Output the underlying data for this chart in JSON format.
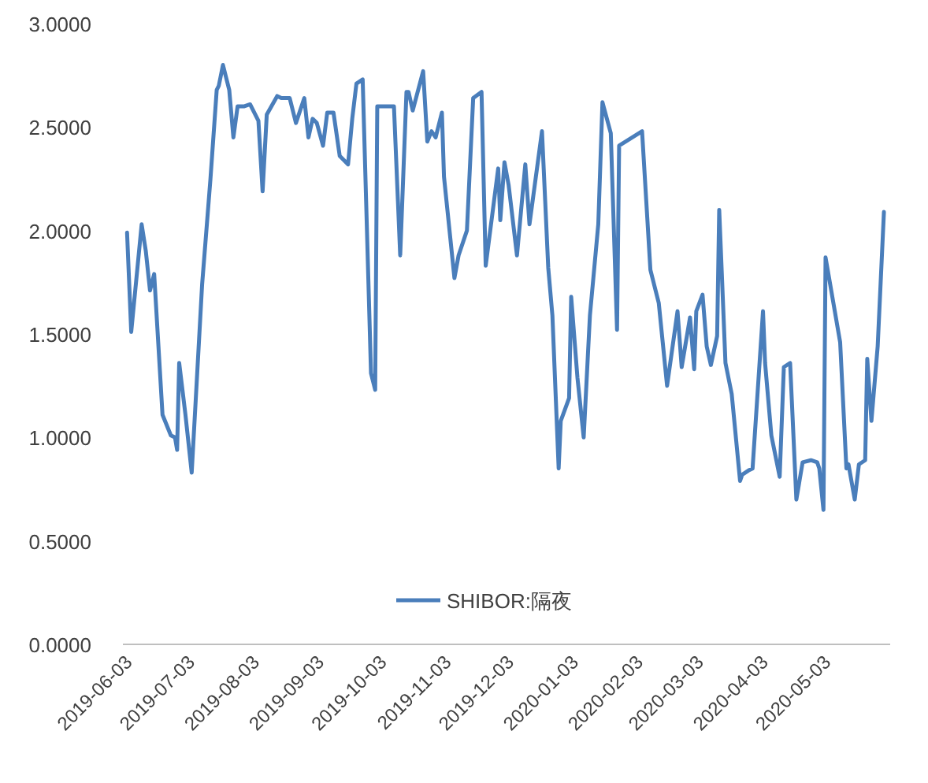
{
  "chart_data": {
    "type": "line",
    "x": [
      "2019-06-03",
      "2019-06-05",
      "2019-06-10",
      "2019-06-12",
      "2019-06-14",
      "2019-06-16",
      "2019-06-20",
      "2019-06-24",
      "2019-06-26",
      "2019-06-27",
      "2019-06-28",
      "2019-07-01",
      "2019-07-04",
      "2019-07-09",
      "2019-07-13",
      "2019-07-16",
      "2019-07-17",
      "2019-07-19",
      "2019-07-22",
      "2019-07-24",
      "2019-07-26",
      "2019-07-29",
      "2019-08-01",
      "2019-08-05",
      "2019-08-07",
      "2019-08-09",
      "2019-08-14",
      "2019-08-16",
      "2019-08-20",
      "2019-08-23",
      "2019-08-27",
      "2019-08-29",
      "2019-08-31",
      "2019-09-02",
      "2019-09-05",
      "2019-09-07",
      "2019-09-10",
      "2019-09-13",
      "2019-09-17",
      "2019-09-19",
      "2019-09-21",
      "2019-09-24",
      "2019-09-28",
      "2019-09-30",
      "2019-10-01",
      "2019-10-09",
      "2019-10-12",
      "2019-10-15",
      "2019-10-16",
      "2019-10-18",
      "2019-10-23",
      "2019-10-25",
      "2019-10-27",
      "2019-10-29",
      "2019-11-01",
      "2019-11-02",
      "2019-11-07",
      "2019-11-09",
      "2019-11-13",
      "2019-11-16",
      "2019-11-20",
      "2019-11-22",
      "2019-11-28",
      "2019-11-29",
      "2019-12-01",
      "2019-12-03",
      "2019-12-07",
      "2019-12-11",
      "2019-12-13",
      "2019-12-19",
      "2019-12-22",
      "2019-12-24",
      "2019-12-27",
      "2019-12-28",
      "2020-01-01",
      "2020-01-02",
      "2020-01-05",
      "2020-01-08",
      "2020-01-11",
      "2020-01-15",
      "2020-01-17",
      "2020-01-21",
      "2020-01-24",
      "2020-01-25",
      "2020-02-05",
      "2020-02-09",
      "2020-02-13",
      "2020-02-17",
      "2020-02-22",
      "2020-02-24",
      "2020-02-28",
      "2020-03-01",
      "2020-03-02",
      "2020-03-05",
      "2020-03-07",
      "2020-03-09",
      "2020-03-12",
      "2020-03-13",
      "2020-03-16",
      "2020-03-19",
      "2020-03-23",
      "2020-03-24",
      "2020-03-27",
      "2020-03-29",
      "2020-04-03",
      "2020-04-04",
      "2020-04-07",
      "2020-04-11",
      "2020-04-13",
      "2020-04-16",
      "2020-04-19",
      "2020-04-22",
      "2020-04-26",
      "2020-04-29",
      "2020-04-30",
      "2020-05-02",
      "2020-05-03",
      "2020-05-10",
      "2020-05-13",
      "2020-05-14",
      "2020-05-17",
      "2020-05-19",
      "2020-05-22",
      "2020-05-23",
      "2020-05-25",
      "2020-05-28",
      "2020-05-31"
    ],
    "series": [
      {
        "name": "SHIBOR:隔夜",
        "color": "#4a7ebb",
        "values": [
          1.99,
          1.51,
          2.03,
          1.9,
          1.71,
          1.79,
          1.11,
          1.01,
          1.0,
          0.94,
          1.36,
          1.11,
          0.83,
          1.74,
          2.25,
          2.68,
          2.7,
          2.8,
          2.68,
          2.45,
          2.6,
          2.6,
          2.61,
          2.53,
          2.19,
          2.56,
          2.65,
          2.64,
          2.64,
          2.52,
          2.64,
          2.45,
          2.54,
          2.52,
          2.41,
          2.57,
          2.57,
          2.36,
          2.32,
          2.54,
          2.71,
          2.73,
          1.31,
          1.23,
          2.6,
          2.6,
          1.88,
          2.67,
          2.67,
          2.58,
          2.77,
          2.43,
          2.48,
          2.45,
          2.57,
          2.26,
          1.77,
          1.88,
          2.0,
          2.64,
          2.67,
          1.83,
          2.3,
          2.05,
          2.33,
          2.22,
          1.88,
          2.32,
          2.03,
          2.48,
          1.82,
          1.59,
          0.85,
          1.08,
          1.19,
          1.68,
          1.29,
          1.0,
          1.59,
          2.03,
          2.62,
          2.47,
          1.52,
          2.41,
          2.48,
          1.81,
          1.65,
          1.25,
          1.61,
          1.34,
          1.58,
          1.33,
          1.61,
          1.69,
          1.44,
          1.35,
          1.49,
          2.1,
          1.36,
          1.21,
          0.79,
          0.82,
          0.84,
          0.85,
          1.61,
          1.36,
          1.01,
          0.81,
          1.34,
          1.36,
          0.7,
          0.88,
          0.89,
          0.88,
          0.85,
          0.65,
          1.87,
          1.46,
          0.85,
          0.87,
          0.7,
          0.87,
          0.89,
          1.38,
          1.08,
          1.44,
          2.09
        ]
      }
    ],
    "xlim": [
      "2019-06-01",
      "2020-06-03"
    ],
    "xticks": [
      "2019-06-03",
      "2019-07-03",
      "2019-08-03",
      "2019-09-03",
      "2019-10-03",
      "2019-11-03",
      "2019-12-03",
      "2020-01-03",
      "2020-02-03",
      "2020-03-03",
      "2020-04-03",
      "2020-05-03"
    ],
    "ylim": [
      0,
      3
    ],
    "yticks": [
      {
        "value": 0,
        "label": "0.0000"
      },
      {
        "value": 0.5,
        "label": "0.5000"
      },
      {
        "value": 1,
        "label": "1.0000"
      },
      {
        "value": 1.5,
        "label": "1.5000"
      },
      {
        "value": 2,
        "label": "2.0000"
      },
      {
        "value": 2.5,
        "label": "2.5000"
      },
      {
        "value": 3,
        "label": "3.0000"
      }
    ],
    "legend": "bottom",
    "marker": "none",
    "line_style": "solid"
  }
}
